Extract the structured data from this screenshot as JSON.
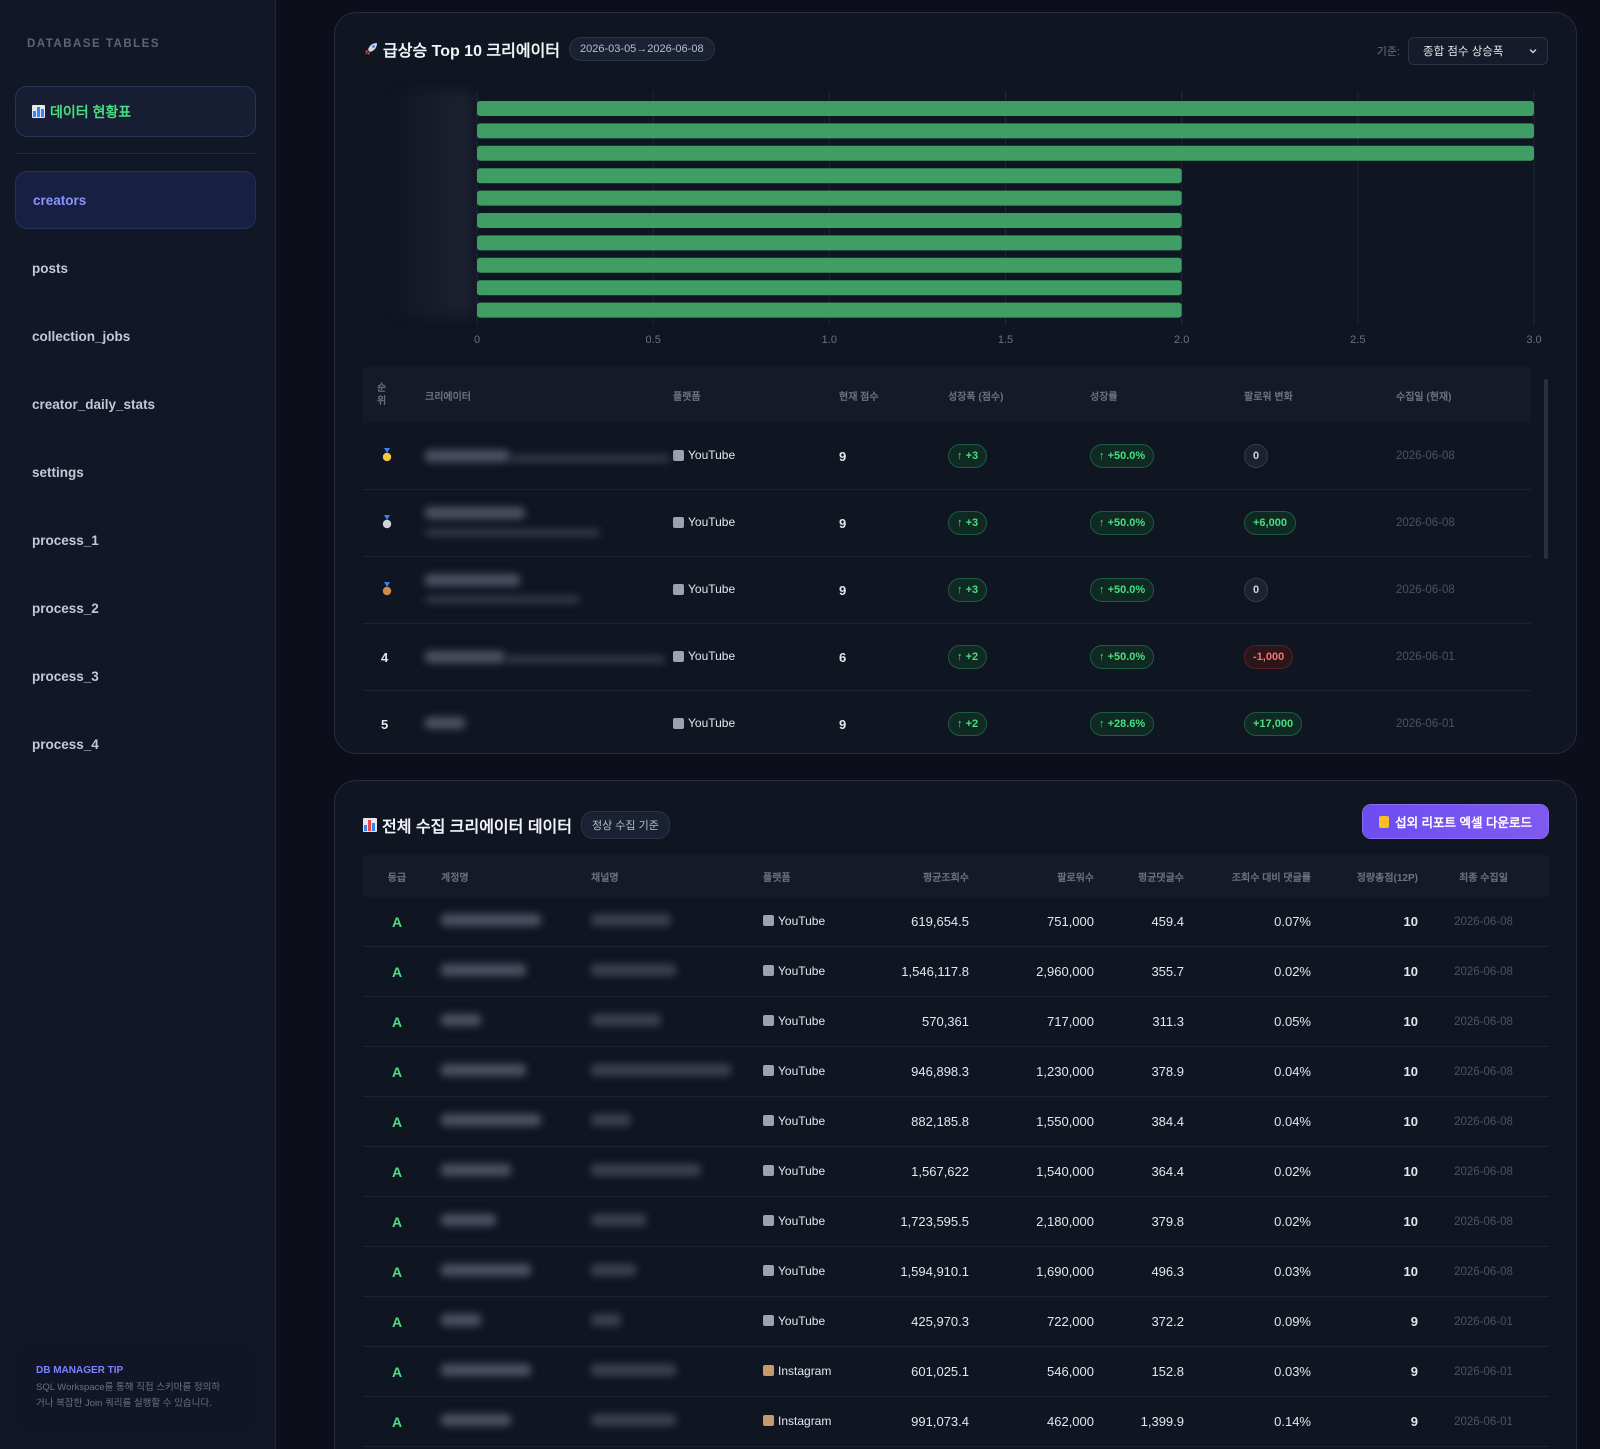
{
  "sidebar": {
    "title": "DATABASE TABLES",
    "dashboard_label": "데이터 현황표",
    "items": [
      "creators",
      "posts",
      "collection_jobs",
      "creator_daily_stats",
      "settings",
      "process_1",
      "process_2",
      "process_3",
      "process_4"
    ],
    "active_item": "creators",
    "tip_title": "DB MANAGER TIP",
    "tip_text_line1": "SQL Workspace를 통해 직접 스키마를 정의하",
    "tip_text_line2": "거나 복잡한 Join 쿼리를 실행할 수 있습니다."
  },
  "rising": {
    "title": "급상승 Top 10 크리에이터",
    "date_range": "2026-03-05→2026-06-08",
    "filter_label": "기준:",
    "filter_value": "종합 점수 상승폭",
    "headers": [
      "순위",
      "크리에이터",
      "플랫폼",
      "현재 점수",
      "성장폭 (점수)",
      "성장률",
      "팔로워 변화",
      "수집일 (현재)"
    ],
    "rows": [
      {
        "rank": "medal-gold",
        "platform": "YouTube",
        "score": "9",
        "growth": "+3",
        "rate": "+50.0%",
        "follower": "0",
        "follower_tone": "neutral",
        "date": "2026-06-08"
      },
      {
        "rank": "medal-silver",
        "platform": "YouTube",
        "score": "9",
        "growth": "+3",
        "rate": "+50.0%",
        "follower": "+6,000",
        "follower_tone": "up",
        "date": "2026-06-08"
      },
      {
        "rank": "medal-bronze",
        "platform": "YouTube",
        "score": "9",
        "growth": "+3",
        "rate": "+50.0%",
        "follower": "0",
        "follower_tone": "neutral",
        "date": "2026-06-08"
      },
      {
        "rank": "4",
        "platform": "YouTube",
        "score": "6",
        "growth": "+2",
        "rate": "+50.0%",
        "follower": "-1,000",
        "follower_tone": "down",
        "date": "2026-06-01"
      },
      {
        "rank": "5",
        "platform": "YouTube",
        "score": "9",
        "growth": "+2",
        "rate": "+28.6%",
        "follower": "+17,000",
        "follower_tone": "up",
        "date": "2026-06-01"
      }
    ]
  },
  "chart_data": {
    "type": "bar",
    "orientation": "horizontal",
    "values": [
      3,
      3,
      3,
      2,
      2,
      2,
      2,
      2,
      2,
      2
    ],
    "xlim": [
      0,
      3
    ],
    "xticks": [
      "0",
      "0.5",
      "1.0",
      "1.5",
      "2.0",
      "2.5",
      "3.0"
    ],
    "bar_color": "#3f9e63",
    "grid": true
  },
  "all": {
    "title": "전체 수집 크리에이터 데이터",
    "badge": "정상 수집 기준",
    "download_label": "섭외 리포트 엑셀 다운로드",
    "headers": [
      "등급",
      "계정명",
      "채널명",
      "플랫폼",
      "평균조회수",
      "팔로워수",
      "평균댓글수",
      "조회수 대비 댓글률",
      "정량총점(12P)",
      "최종 수집일"
    ],
    "rows": [
      {
        "grade": "A",
        "platform": "YouTube",
        "views": "619,654.5",
        "followers": "751,000",
        "comments": "459.4",
        "ratio": "0.07%",
        "score": "10",
        "date": "2026-06-08"
      },
      {
        "grade": "A",
        "platform": "YouTube",
        "views": "1,546,117.8",
        "followers": "2,960,000",
        "comments": "355.7",
        "ratio": "0.02%",
        "score": "10",
        "date": "2026-06-08"
      },
      {
        "grade": "A",
        "platform": "YouTube",
        "views": "570,361",
        "followers": "717,000",
        "comments": "311.3",
        "ratio": "0.05%",
        "score": "10",
        "date": "2026-06-08"
      },
      {
        "grade": "A",
        "platform": "YouTube",
        "views": "946,898.3",
        "followers": "1,230,000",
        "comments": "378.9",
        "ratio": "0.04%",
        "score": "10",
        "date": "2026-06-08"
      },
      {
        "grade": "A",
        "platform": "YouTube",
        "views": "882,185.8",
        "followers": "1,550,000",
        "comments": "384.4",
        "ratio": "0.04%",
        "score": "10",
        "date": "2026-06-08"
      },
      {
        "grade": "A",
        "platform": "YouTube",
        "views": "1,567,622",
        "followers": "1,540,000",
        "comments": "364.4",
        "ratio": "0.02%",
        "score": "10",
        "date": "2026-06-08"
      },
      {
        "grade": "A",
        "platform": "YouTube",
        "views": "1,723,595.5",
        "followers": "2,180,000",
        "comments": "379.8",
        "ratio": "0.02%",
        "score": "10",
        "date": "2026-06-08"
      },
      {
        "grade": "A",
        "platform": "YouTube",
        "views": "1,594,910.1",
        "followers": "1,690,000",
        "comments": "496.3",
        "ratio": "0.03%",
        "score": "10",
        "date": "2026-06-08"
      },
      {
        "grade": "A",
        "platform": "YouTube",
        "views": "425,970.3",
        "followers": "722,000",
        "comments": "372.2",
        "ratio": "0.09%",
        "score": "9",
        "date": "2026-06-01"
      },
      {
        "grade": "A",
        "platform": "Instagram",
        "views": "601,025.1",
        "followers": "546,000",
        "comments": "152.8",
        "ratio": "0.03%",
        "score": "9",
        "date": "2026-06-01"
      },
      {
        "grade": "A",
        "platform": "Instagram",
        "views": "991,073.4",
        "followers": "462,000",
        "comments": "1,399.9",
        "ratio": "0.14%",
        "score": "9",
        "date": "2026-06-01"
      }
    ]
  }
}
